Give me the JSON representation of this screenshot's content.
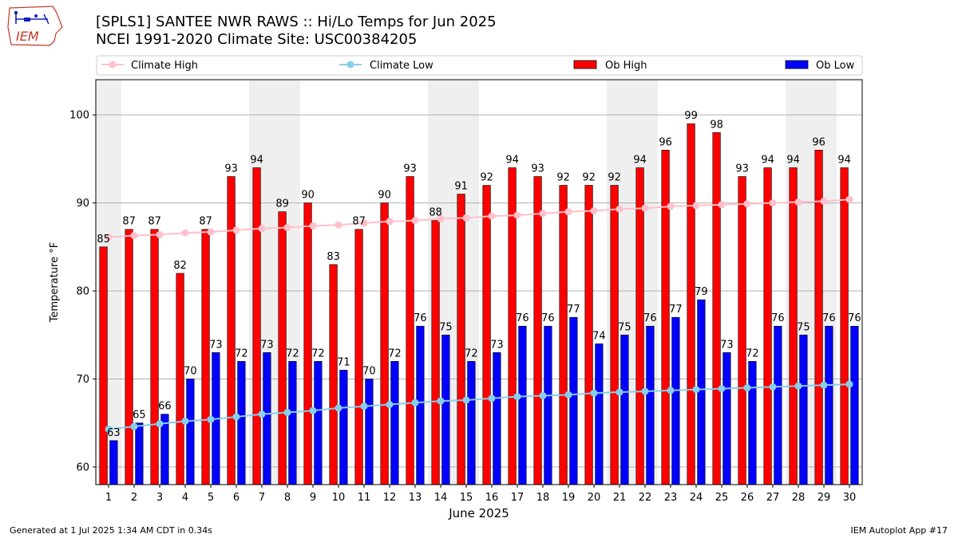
{
  "header": {
    "title_line1": "[SPLS1] SANTEE NWR RAWS :: Hi/Lo Temps for Jun 2025",
    "title_line2": "NCEI 1991-2020 Climate Site: USC00384205",
    "logo_text": "IEM"
  },
  "footer": {
    "generated": "Generated at 1 Jul 2025 1:34 AM CDT in 0.34s",
    "app": "IEM Autoplot App #17"
  },
  "chart_data": {
    "type": "bar",
    "xlabel": "June 2025",
    "ylabel": "Temperature °F",
    "ylim": [
      58,
      104
    ],
    "yticks": [
      60,
      70,
      80,
      90,
      100
    ],
    "grid": true,
    "legend_position": "top",
    "categories": [
      "1",
      "2",
      "3",
      "4",
      "5",
      "6",
      "7",
      "8",
      "9",
      "10",
      "11",
      "12",
      "13",
      "14",
      "15",
      "16",
      "17",
      "18",
      "19",
      "20",
      "21",
      "22",
      "23",
      "24",
      "25",
      "26",
      "27",
      "28",
      "29",
      "30"
    ],
    "weekend_shading_days": [
      [
        1,
        1
      ],
      [
        7,
        8
      ],
      [
        14,
        15
      ],
      [
        21,
        22
      ],
      [
        28,
        29
      ]
    ],
    "series": [
      {
        "name": "Ob High",
        "kind": "bar",
        "color": "#ff0000",
        "values": [
          85,
          87,
          87,
          82,
          87,
          93,
          94,
          89,
          90,
          83,
          87,
          90,
          93,
          88,
          91,
          92,
          94,
          93,
          92,
          92,
          92,
          94,
          96,
          99,
          98,
          93,
          94,
          94,
          96,
          94
        ]
      },
      {
        "name": "Ob Low",
        "kind": "bar",
        "color": "#0000ff",
        "values": [
          63,
          65,
          66,
          70,
          73,
          72,
          73,
          72,
          72,
          71,
          70,
          72,
          76,
          75,
          72,
          73,
          76,
          76,
          77,
          74,
          75,
          76,
          77,
          79,
          73,
          72,
          76,
          75,
          76,
          76
        ]
      },
      {
        "name": "Climate High",
        "kind": "line",
        "color": "#ffc0cb",
        "values": [
          86.1,
          86.3,
          86.4,
          86.6,
          86.7,
          86.9,
          87.1,
          87.2,
          87.4,
          87.5,
          87.7,
          87.9,
          88.0,
          88.2,
          88.3,
          88.5,
          88.6,
          88.8,
          89.0,
          89.1,
          89.3,
          89.4,
          89.6,
          89.7,
          89.8,
          89.9,
          90.0,
          90.1,
          90.2,
          90.4
        ]
      },
      {
        "name": "Climate Low",
        "kind": "line",
        "color": "#87ceeb",
        "values": [
          64.3,
          64.6,
          64.9,
          65.2,
          65.4,
          65.7,
          66.0,
          66.2,
          66.4,
          66.7,
          66.9,
          67.1,
          67.3,
          67.5,
          67.6,
          67.8,
          68.0,
          68.1,
          68.2,
          68.4,
          68.5,
          68.6,
          68.7,
          68.8,
          68.9,
          69.0,
          69.1,
          69.2,
          69.3,
          69.4
        ]
      }
    ],
    "legend_order": [
      "Climate High",
      "Climate Low",
      "Ob High",
      "Ob Low"
    ]
  }
}
